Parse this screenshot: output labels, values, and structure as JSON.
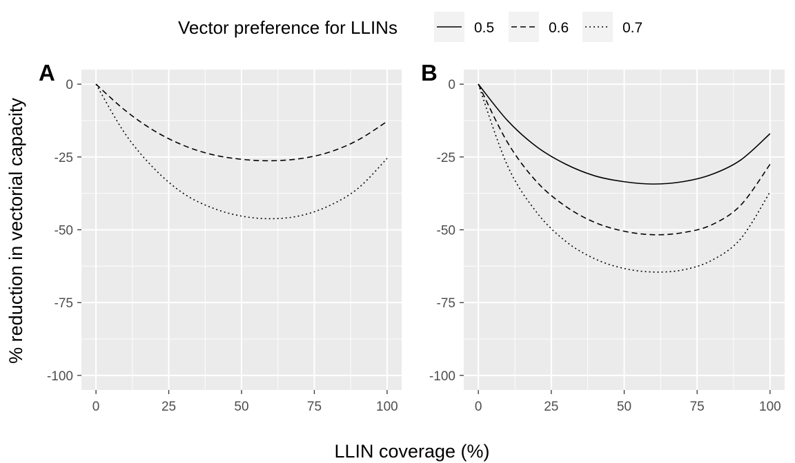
{
  "chart_data": {
    "type": "line",
    "legend": {
      "title": "Vector preference for LLINs",
      "placement": "top",
      "entries": [
        {
          "label": "0.5",
          "linetype": "solid"
        },
        {
          "label": "0.6",
          "linetype": "dashed"
        },
        {
          "label": "0.7",
          "linetype": "dotted"
        }
      ]
    },
    "xlabel": "LLIN coverage (%)",
    "ylabel": "% reduction in vectorial capacity",
    "xlim": [
      -5,
      105
    ],
    "ylim": [
      -105,
      5
    ],
    "x_ticks": [
      0,
      25,
      50,
      75,
      100
    ],
    "y_ticks": [
      0,
      -25,
      -50,
      -75,
      -100
    ],
    "x_tick_labels": [
      "0",
      "25",
      "50",
      "75",
      "100"
    ],
    "y_tick_labels": [
      "0",
      "-25",
      "-50",
      "-75",
      "-100"
    ],
    "grid": true,
    "colors": {
      "panel_bg": "#ebebeb",
      "grid": "#ffffff",
      "line": "#000000"
    },
    "panels": [
      {
        "tag": "A",
        "x": [
          0,
          10,
          20,
          30,
          40,
          50,
          60,
          70,
          80,
          90,
          100
        ],
        "series": [
          {
            "name": "0.6",
            "linetype": "dashed",
            "values": [
              0,
              -9,
              -16,
              -21,
              -24.2,
              -25.8,
              -26.3,
              -25.6,
              -23.4,
              -19.2,
              -12.8
            ]
          },
          {
            "name": "0.7",
            "linetype": "dotted",
            "values": [
              0,
              -17,
              -29,
              -37.5,
              -42.5,
              -45.3,
              -46.2,
              -45.2,
              -41.8,
              -35.8,
              -25.5
            ]
          }
        ]
      },
      {
        "tag": "B",
        "x": [
          0,
          10,
          20,
          30,
          40,
          50,
          60,
          70,
          80,
          90,
          100
        ],
        "series": [
          {
            "name": "0.5",
            "linetype": "solid",
            "values": [
              0,
              -12.5,
              -21.5,
              -27.5,
              -31.5,
              -33.5,
              -34.3,
              -33.5,
              -31,
              -26,
              -17
            ]
          },
          {
            "name": "0.6",
            "linetype": "dashed",
            "values": [
              0,
              -20,
              -33.5,
              -42,
              -47.5,
              -50.5,
              -51.7,
              -51,
              -48.3,
              -41.5,
              -27.5
            ]
          },
          {
            "name": "0.7",
            "linetype": "dotted",
            "values": [
              0,
              -28,
              -44,
              -54,
              -60,
              -63.3,
              -64.5,
              -63.8,
              -60.5,
              -53,
              -37
            ]
          }
        ]
      }
    ]
  }
}
